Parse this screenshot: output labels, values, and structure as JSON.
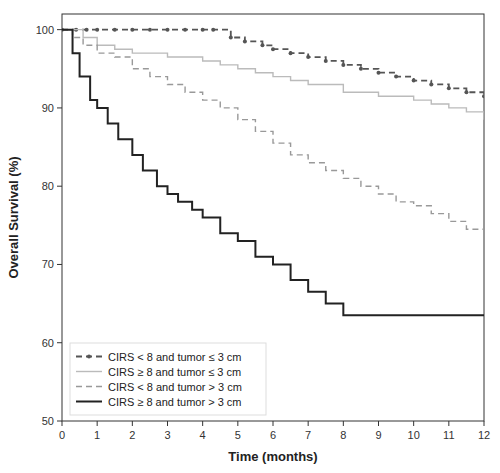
{
  "chart_data": {
    "type": "step",
    "xlabel": "Time (months)",
    "ylabel": "Overall Survival (%)",
    "xlim": [
      0,
      12
    ],
    "ylim": [
      50,
      102
    ],
    "xticks": [
      0,
      1,
      2,
      3,
      4,
      5,
      6,
      7,
      8,
      9,
      10,
      11,
      12
    ],
    "yticks": [
      50,
      60,
      70,
      80,
      90,
      100
    ],
    "grid": false,
    "legend": "lower left",
    "series": [
      {
        "name": "CIRS < 8 and tumor ≤ 3 cm",
        "color": "#555555",
        "line_style": "dashed",
        "marker": "point",
        "x": [
          0,
          0.4,
          0.7,
          1.0,
          1.5,
          2.0,
          2.5,
          3.0,
          3.5,
          4.0,
          4.3,
          4.8,
          5.2,
          5.7,
          6.0,
          6.5,
          7.0,
          7.5,
          8.0,
          8.5,
          9.0,
          9.5,
          10.0,
          10.5,
          11.0,
          11.5,
          12.0
        ],
        "values": [
          100,
          100,
          100,
          100,
          100,
          100,
          100,
          100,
          100,
          100,
          100,
          99,
          98.5,
          98,
          97.5,
          97,
          96.5,
          96,
          95.5,
          95,
          94.5,
          94,
          93.5,
          93,
          92.5,
          92,
          91.5
        ]
      },
      {
        "name": "CIRS ≥ 8 and tumor ≤ 3 cm",
        "color": "#bbbbbb",
        "line_style": "solid",
        "x": [
          0,
          0.3,
          0.6,
          1.0,
          1.5,
          2.0,
          3.0,
          4.0,
          4.5,
          5.0,
          5.5,
          6.0,
          6.5,
          7.0,
          8.0,
          9.0,
          10.0,
          10.5,
          11.0,
          11.5,
          12.0
        ],
        "values": [
          100,
          100,
          99,
          98,
          97.5,
          97,
          96.5,
          96,
          95.5,
          95,
          94.5,
          94,
          93.5,
          93,
          92,
          91.5,
          91,
          90.5,
          90,
          89.5,
          88.5
        ]
      },
      {
        "name": "CIRS < 8 and tumor > 3 cm",
        "color": "#999999",
        "line_style": "dashed",
        "x": [
          0,
          0.3,
          0.6,
          1.0,
          1.5,
          2.0,
          2.5,
          3.0,
          3.5,
          4.0,
          4.5,
          5.0,
          5.5,
          6.0,
          6.5,
          7.0,
          7.5,
          8.0,
          8.5,
          9.0,
          9.5,
          10.0,
          10.5,
          11.0,
          11.5,
          12.0
        ],
        "values": [
          100,
          99,
          98,
          97,
          96.5,
          95,
          94,
          93,
          92,
          91,
          90,
          88.5,
          87,
          85.5,
          84,
          83,
          82,
          81,
          80,
          79,
          78,
          77.5,
          76.5,
          75.5,
          74.5,
          73.5
        ]
      },
      {
        "name": "CIRS ≥ 8 and tumor > 3 cm",
        "color": "#222222",
        "line_style": "solid",
        "x": [
          0,
          0.3,
          0.5,
          0.8,
          1.0,
          1.3,
          1.6,
          2.0,
          2.3,
          2.7,
          3.0,
          3.3,
          3.7,
          4.0,
          4.5,
          5.0,
          5.5,
          6.0,
          6.5,
          7.0,
          7.5,
          8.0,
          8.5,
          12.0
        ],
        "values": [
          100,
          97,
          94,
          91,
          90,
          88,
          86,
          84,
          82,
          80,
          79,
          78,
          77,
          76,
          74,
          73,
          71,
          70,
          68,
          66.5,
          65,
          63.5,
          63.5,
          63.5
        ]
      }
    ]
  }
}
